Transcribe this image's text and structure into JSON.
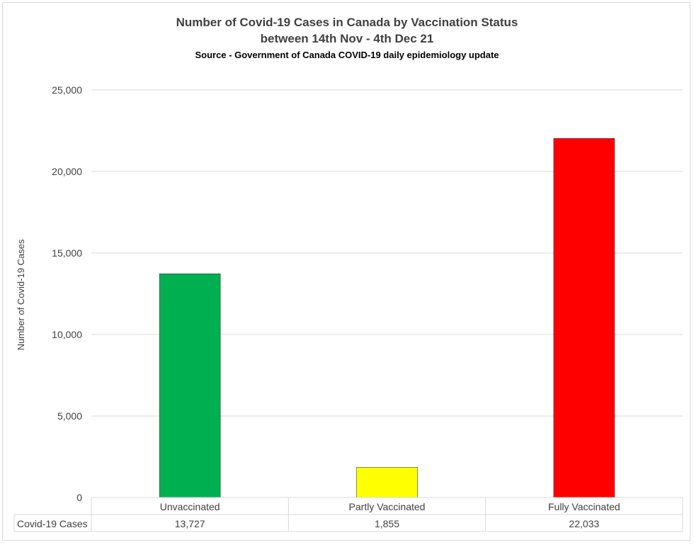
{
  "chart_data": {
    "type": "bar",
    "title": "Number of Covid-19 Cases in Canada by Vaccination Status",
    "subtitle": "between 14th Nov - 4th Dec 21",
    "source": "Source - Government of Canada COVID-19 daily epidemiology update",
    "xlabel": "",
    "ylabel": "Number of Covid-19 Cases",
    "ylim": [
      0,
      25000
    ],
    "yticks": [
      0,
      5000,
      10000,
      15000,
      20000,
      25000
    ],
    "ytick_labels": [
      "0",
      "5,000",
      "10,000",
      "15,000",
      "20,000",
      "25,000"
    ],
    "grid": true,
    "categories": [
      "Unvaccinated",
      "Partly Vaccinated",
      "Fully Vaccinated"
    ],
    "series": [
      {
        "name": "Covid-19 Cases",
        "values": [
          13727,
          1855,
          22033
        ],
        "value_labels": [
          "13,727",
          "1,855",
          "22,033"
        ],
        "colors": [
          "#00b050",
          "#ffff00",
          "#ff0000"
        ]
      }
    ],
    "data_table": true
  }
}
